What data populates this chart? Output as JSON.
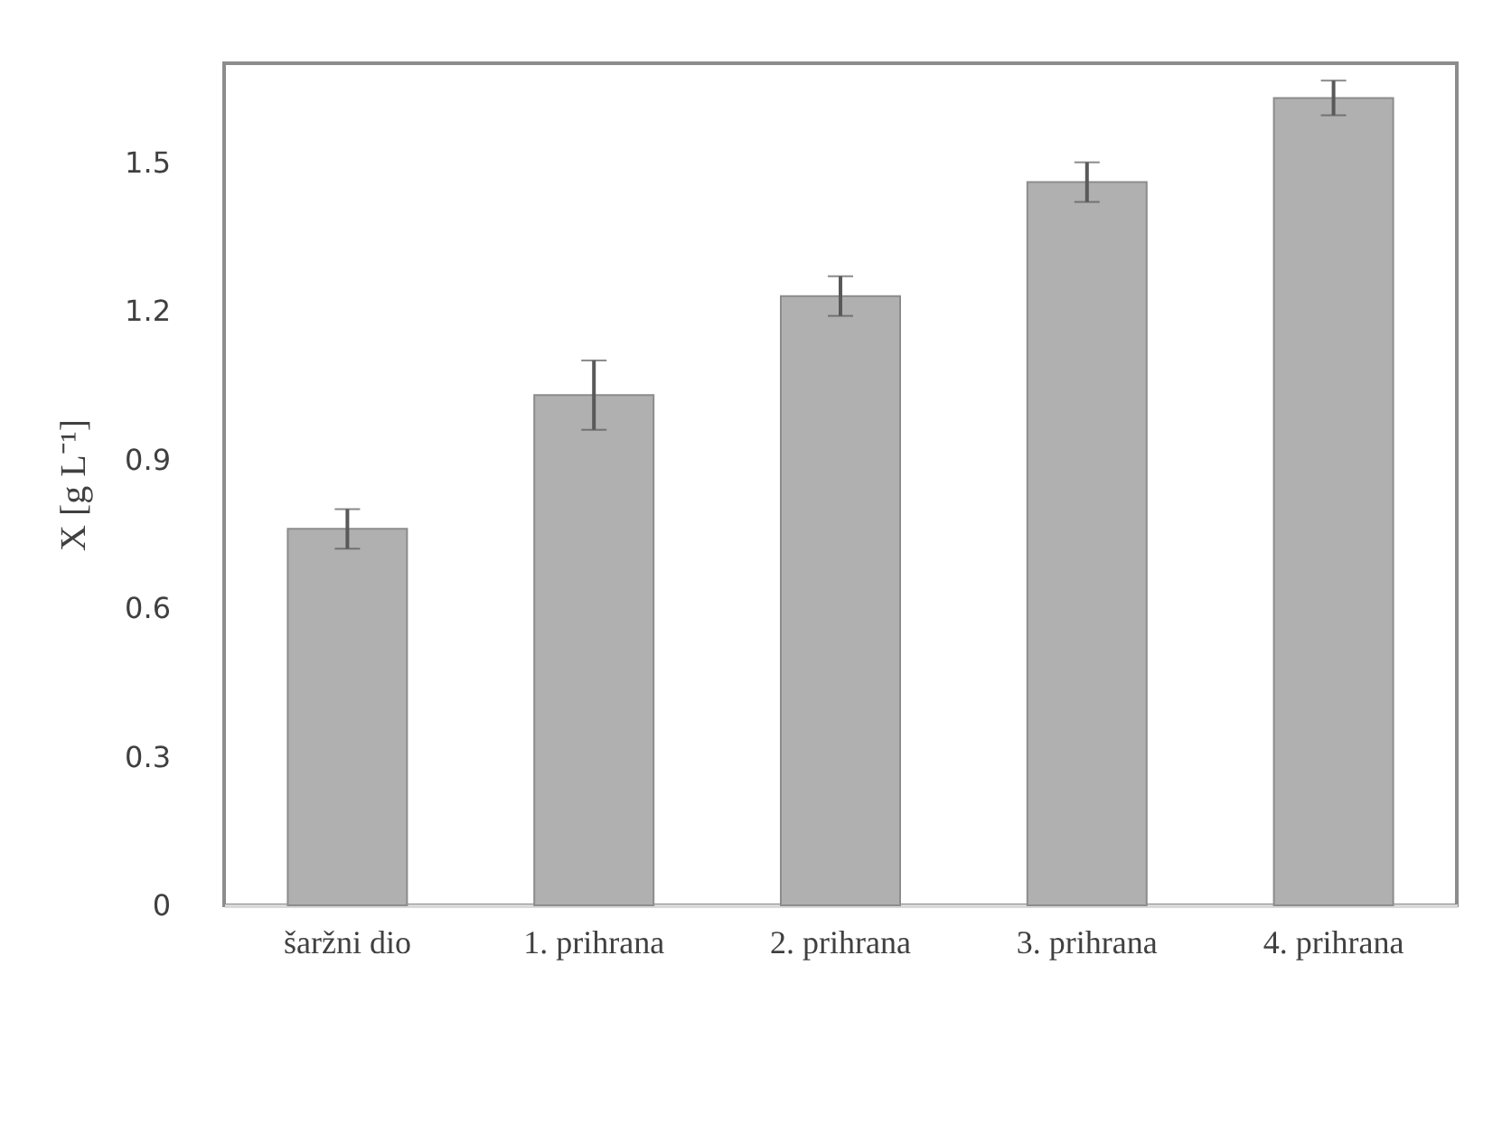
{
  "chart_data": {
    "type": "bar",
    "ylabel": "X [g L⁻¹]",
    "categories": [
      "šaržni dio",
      "1. prihrana",
      "2. prihrana",
      "3. prihrana",
      "4. prihrana"
    ],
    "values": [
      0.76,
      1.03,
      1.23,
      1.46,
      1.63
    ],
    "errors": [
      0.04,
      0.07,
      0.04,
      0.04,
      0.035
    ],
    "color": "#b0b0b0",
    "ylim": [
      0,
      1.7
    ],
    "yticks": [
      0,
      0.3,
      0.6,
      0.9,
      1.2,
      1.5
    ],
    "grid": false
  }
}
